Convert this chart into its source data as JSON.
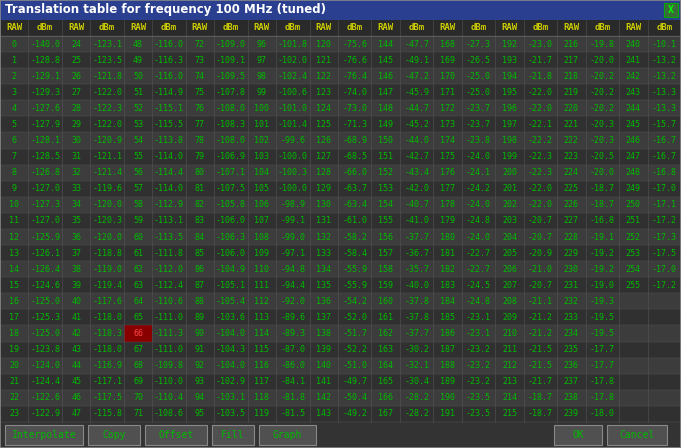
{
  "title": "Translation table for frequency 100 MHz (tuned)",
  "bg_color": "#333333",
  "title_bg": "#2a3f8f",
  "title_fg": "#ffffff",
  "header_fg": "#cccc00",
  "cell_fg": "#00bb00",
  "highlight_row": 18,
  "highlight_col": 4,
  "highlight_bg": "#880000",
  "highlight_fg": "#ff4444",
  "btn_bg": "#505050",
  "btn_edge": "#888888",
  "btn_fg": "#00bb00",
  "table_data": [
    [
      0,
      -140.0,
      24,
      -123.1,
      48,
      -116.0,
      72,
      -109.0,
      96,
      -101.8,
      120,
      -75.6,
      144,
      -47.7,
      168,
      -27.3,
      192,
      -23.0,
      216,
      -19.8,
      240,
      -10.1
    ],
    [
      1,
      -128.8,
      25,
      -123.5,
      49,
      -116.3,
      73,
      -109.1,
      97,
      -102.0,
      121,
      -76.6,
      145,
      -49.1,
      169,
      -26.5,
      193,
      -21.7,
      217,
      -20.0,
      241,
      -13.2
    ],
    [
      2,
      -129.1,
      26,
      -121.8,
      50,
      -116.0,
      74,
      -109.5,
      98,
      -102.4,
      122,
      -76.4,
      146,
      -47.2,
      170,
      -25.0,
      194,
      -21.8,
      218,
      -20.2,
      242,
      -13.2
    ],
    [
      3,
      -129.3,
      27,
      -122.0,
      51,
      -114.9,
      75,
      -107.8,
      99,
      -100.6,
      123,
      -74.0,
      147,
      -45.9,
      171,
      -25.0,
      195,
      -22.0,
      219,
      -20.2,
      243,
      -13.3
    ],
    [
      4,
      -127.6,
      28,
      -122.3,
      52,
      -115.1,
      76,
      -108.0,
      100,
      -101.0,
      124,
      -73.0,
      148,
      -44.7,
      172,
      -23.7,
      196,
      -22.0,
      220,
      -20.2,
      244,
      -13.3
    ],
    [
      5,
      -127.9,
      29,
      -122.0,
      53,
      -115.5,
      77,
      -108.3,
      101,
      -101.4,
      125,
      -71.3,
      149,
      -45.2,
      173,
      -23.7,
      197,
      -22.1,
      221,
      -20.3,
      245,
      -15.7
    ],
    [
      6,
      -128.1,
      30,
      -120.9,
      54,
      -113.8,
      78,
      -108.0,
      102,
      -99.6,
      126,
      -68.9,
      150,
      -44.0,
      174,
      -23.8,
      198,
      -22.2,
      222,
      -20.3,
      246,
      -16.7
    ],
    [
      7,
      -128.5,
      31,
      -121.1,
      55,
      -114.0,
      79,
      -106.9,
      103,
      -100.0,
      127,
      -68.5,
      151,
      -42.7,
      175,
      -24.0,
      199,
      -22.3,
      223,
      -20.5,
      247,
      -16.7
    ],
    [
      8,
      -126.8,
      32,
      -121.4,
      56,
      -114.4,
      80,
      -107.1,
      104,
      -100.3,
      128,
      -66.0,
      152,
      -43.4,
      176,
      -24.1,
      200,
      -22.3,
      224,
      -20.0,
      248,
      -16.8
    ],
    [
      9,
      -127.0,
      33,
      -119.6,
      57,
      -114.0,
      81,
      -107.5,
      105,
      -100.0,
      129,
      -63.7,
      153,
      -42.0,
      177,
      -24.2,
      201,
      -22.0,
      225,
      -18.7,
      249,
      -17.0
    ],
    [
      10,
      -127.3,
      34,
      -120.0,
      58,
      -112.9,
      82,
      -105.8,
      106,
      -98.9,
      130,
      -63.4,
      154,
      -40.7,
      178,
      -24.0,
      202,
      -22.0,
      226,
      -18.7,
      250,
      -17.1
    ],
    [
      11,
      -127.0,
      35,
      -120.3,
      59,
      -113.1,
      83,
      -106.0,
      107,
      -99.1,
      131,
      -61.0,
      155,
      -41.0,
      179,
      -24.8,
      203,
      -20.7,
      227,
      -16.8,
      251,
      -17.2
    ],
    [
      12,
      -125.9,
      36,
      -120.0,
      60,
      -113.5,
      84,
      -106.3,
      108,
      -99.0,
      132,
      -58.2,
      156,
      -37.7,
      180,
      -24.0,
      204,
      -20.7,
      228,
      -19.1,
      252,
      -17.3
    ],
    [
      13,
      -126.1,
      37,
      -118.8,
      61,
      -111.8,
      85,
      -106.0,
      109,
      -97.1,
      133,
      -58.4,
      157,
      -36.7,
      181,
      -22.7,
      205,
      -20.9,
      229,
      -19.2,
      253,
      -17.5
    ],
    [
      14,
      -126.4,
      38,
      -119.0,
      62,
      -112.0,
      86,
      -104.9,
      110,
      -94.8,
      134,
      -55.9,
      158,
      -35.7,
      182,
      -22.7,
      206,
      -21.0,
      230,
      -19.2,
      254,
      -17.0
    ],
    [
      15,
      -124.6,
      39,
      -119.4,
      63,
      -112.4,
      87,
      -105.1,
      111,
      -94.4,
      135,
      -55.9,
      159,
      -40.0,
      183,
      -24.5,
      207,
      -20.7,
      231,
      -19.0,
      255,
      -17.2
    ],
    [
      16,
      -125.0,
      40,
      -117.6,
      64,
      -110.6,
      88,
      -105.4,
      112,
      -92.0,
      136,
      -54.2,
      160,
      -37.8,
      184,
      -24.8,
      208,
      -21.1,
      232,
      -19.3,
      null,
      null
    ],
    [
      17,
      -125.3,
      41,
      -118.0,
      65,
      -111.0,
      89,
      -103.6,
      113,
      -89.6,
      137,
      -52.0,
      161,
      -37.8,
      185,
      -23.1,
      209,
      -21.2,
      233,
      -19.5,
      null,
      null
    ],
    [
      18,
      -125.0,
      42,
      -118.3,
      66,
      -111.3,
      90,
      -104.0,
      114,
      -89.3,
      138,
      -51.7,
      162,
      -37.7,
      186,
      -23.1,
      210,
      -21.2,
      234,
      -19.5,
      null,
      null
    ],
    [
      19,
      -123.8,
      43,
      -118.0,
      67,
      -111.0,
      91,
      -104.3,
      115,
      -87.0,
      139,
      -52.2,
      163,
      -30.2,
      187,
      -23.2,
      211,
      -21.5,
      235,
      -17.7,
      null,
      null
    ],
    [
      20,
      -124.0,
      44,
      -116.9,
      68,
      -109.8,
      92,
      -104.0,
      116,
      -86.0,
      140,
      -51.0,
      164,
      -32.1,
      188,
      -23.2,
      212,
      -21.5,
      236,
      -17.7,
      null,
      null
    ],
    [
      21,
      -124.4,
      45,
      -117.1,
      69,
      -110.0,
      93,
      -102.9,
      117,
      -84.1,
      141,
      -49.7,
      165,
      -30.4,
      189,
      -23.2,
      213,
      -21.7,
      237,
      -17.8,
      null,
      null
    ],
    [
      22,
      -122.6,
      46,
      -117.5,
      70,
      -110.4,
      94,
      -103.1,
      118,
      -81.8,
      142,
      -50.4,
      166,
      -28.2,
      190,
      -23.5,
      214,
      -18.7,
      238,
      -17.8,
      null,
      null
    ],
    [
      23,
      -122.9,
      47,
      -115.8,
      71,
      -108.6,
      95,
      -103.5,
      119,
      -81.5,
      143,
      -49.2,
      167,
      -28.2,
      191,
      -23.5,
      215,
      -18.7,
      239,
      -18.0,
      null,
      null
    ]
  ],
  "button_defs": [
    [
      5,
      78,
      "Interpolate"
    ],
    [
      88,
      52,
      "Copy"
    ],
    [
      145,
      62,
      "Offset"
    ],
    [
      212,
      42,
      "Fill"
    ],
    [
      259,
      57,
      "Graph"
    ],
    [
      554,
      48,
      "OK"
    ],
    [
      607,
      60,
      "Cancel"
    ]
  ]
}
